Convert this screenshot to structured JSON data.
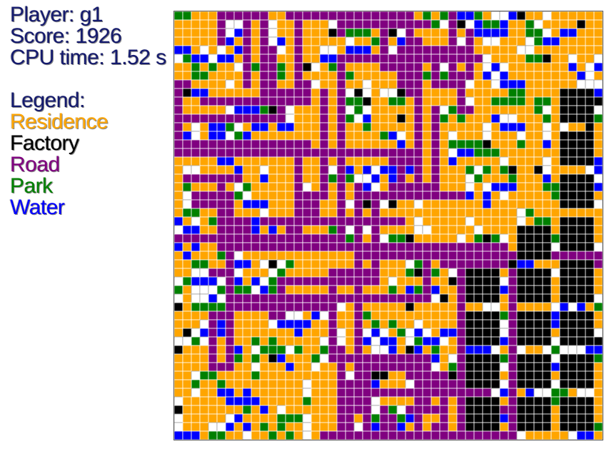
{
  "player_label": "Player: g1",
  "score_label": "Score: 1926",
  "cpu_label": "CPU time: 1.52 s",
  "legend_title": "Legend:",
  "legend": [
    {
      "label": "Residence",
      "color": "#ffa500"
    },
    {
      "label": "Factory",
      "color": "#000000"
    },
    {
      "label": "Road",
      "color": "#800080"
    },
    {
      "label": "Park",
      "color": "#008000"
    },
    {
      "label": "Water",
      "color": "#0000ff"
    }
  ],
  "board": {
    "grid_size": 50,
    "colors": {
      "residence": "#ffa500",
      "factory": "#000000",
      "road": "#800080",
      "park": "#008000",
      "water": "#0000ff",
      "empty": "#ffffff",
      "gridline": "#444444"
    }
  }
}
